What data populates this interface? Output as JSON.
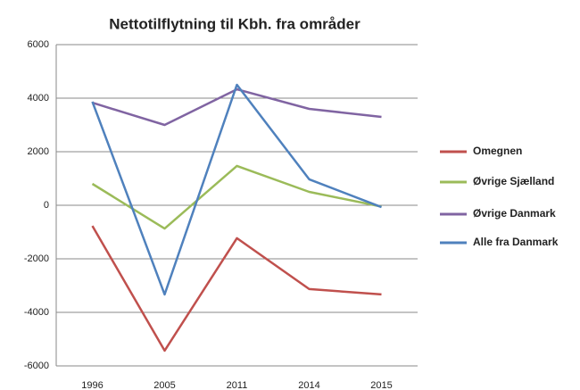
{
  "chart_data": {
    "type": "line",
    "title": "Nettotilflytning til Kbh. fra områder",
    "categories": [
      "1996",
      "2005",
      "2011",
      "2014",
      "2015"
    ],
    "series": [
      {
        "name": "Omegnen",
        "color": "#c0504d",
        "values": [
          -770,
          -5430,
          -1230,
          -3130,
          -3330
        ]
      },
      {
        "name": "Øvrige Sjælland",
        "color": "#9bbb59",
        "values": [
          800,
          -870,
          1470,
          500,
          -50
        ]
      },
      {
        "name": "Øvrige Danmark",
        "color": "#8064a2",
        "values": [
          3830,
          3000,
          4330,
          3600,
          3300
        ]
      },
      {
        "name": "Alle fra Danmark",
        "color": "#4f81bd",
        "values": [
          3870,
          -3330,
          4500,
          970,
          -70
        ]
      }
    ],
    "ylim": [
      -6000,
      6000
    ],
    "yticks": [
      -6000,
      -4000,
      -2000,
      0,
      2000,
      4000,
      6000
    ],
    "grid": true,
    "legend": "right"
  }
}
